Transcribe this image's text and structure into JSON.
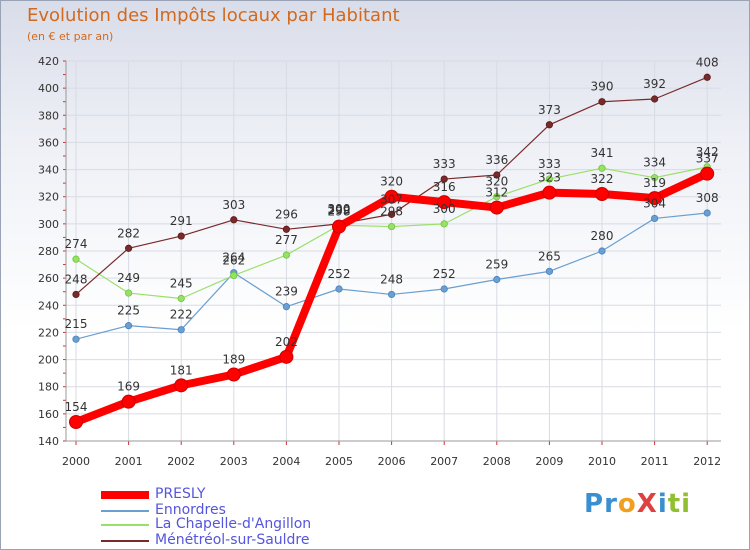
{
  "chart_data": {
    "type": "line",
    "title": "Evolution des Impôts locaux par Habitant",
    "subtitle": "(en € et par an)",
    "x": [
      "2000",
      "2001",
      "2002",
      "2003",
      "2004",
      "2005",
      "2006",
      "2007",
      "2008",
      "2009",
      "2010",
      "2011",
      "2012"
    ],
    "ylim": [
      140,
      420
    ],
    "yticks": [
      140,
      160,
      180,
      200,
      220,
      240,
      260,
      280,
      300,
      320,
      340,
      360,
      380,
      400,
      420
    ],
    "series": [
      {
        "name": "PRESLY",
        "color": "#ff0000",
        "width": 8,
        "marker_color": "#cc0000",
        "values": [
          154,
          169,
          181,
          189,
          202,
          298,
          320,
          316,
          312,
          323,
          322,
          319,
          337
        ]
      },
      {
        "name": "Ennordres",
        "color": "#6a9fd0",
        "width": 1.2,
        "marker_color": "#4a82c0",
        "values": [
          215,
          225,
          222,
          264,
          239,
          252,
          248,
          252,
          259,
          265,
          280,
          304,
          308
        ]
      },
      {
        "name": "La Chapelle-d'Angillon",
        "color": "#99e06a",
        "width": 1.2,
        "marker_color": "#6ac830",
        "values": [
          274,
          249,
          245,
          262,
          277,
          299,
          298,
          300,
          320,
          333,
          341,
          334,
          342
        ]
      },
      {
        "name": "Ménétréol-sur-Sauldre",
        "color": "#7a2a2a",
        "width": 1.2,
        "marker_color": "#5a1a1a",
        "values": [
          248,
          282,
          291,
          303,
          296,
          300,
          307,
          333,
          336,
          373,
          390,
          392,
          408
        ]
      }
    ]
  },
  "legend": [
    {
      "label": "PRESLY"
    },
    {
      "label": "Ennordres"
    },
    {
      "label": "La Chapelle-d'Angillon"
    },
    {
      "label": "Ménétréol-sur-Sauldre"
    }
  ],
  "logo": {
    "text": "ProXiti"
  }
}
